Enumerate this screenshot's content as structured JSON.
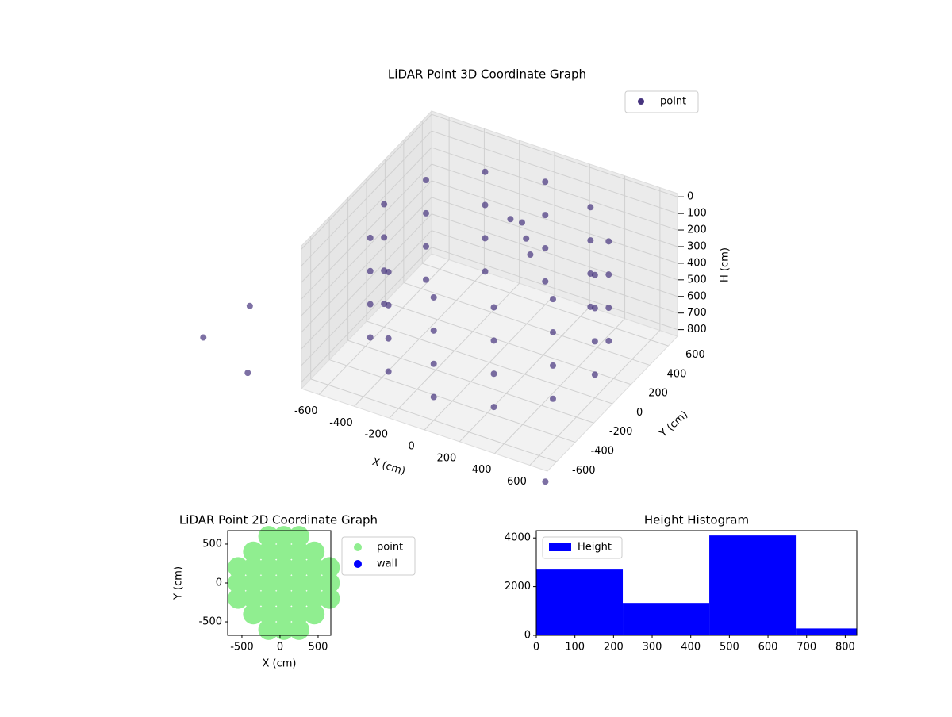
{
  "chart_data": [
    {
      "type": "scatter3d",
      "title": "LiDAR Point 3D Coordinate Graph",
      "xlabel": "X (cm)",
      "ylabel": "Y (cm)",
      "zlabel": "H (cm)",
      "xlim": [
        -700,
        700
      ],
      "ylim": [
        -700,
        700
      ],
      "zlim": [
        840,
        -20
      ],
      "xticks": [
        -600,
        -400,
        -200,
        0,
        200,
        400,
        600
      ],
      "yticks": [
        -600,
        -400,
        -200,
        0,
        200,
        400,
        600
      ],
      "zticks": [
        0,
        100,
        200,
        300,
        400,
        500,
        600,
        700,
        800
      ],
      "legend": "upper right",
      "series": [
        {
          "name": "point",
          "color": "#46337e",
          "x": [
            0,
            -300,
            -520,
            -600,
            -520,
            -300,
            0,
            300,
            520,
            600,
            520,
            300,
            0,
            -300,
            -520,
            -600,
            -520,
            -300,
            0,
            300,
            520,
            600,
            520,
            300,
            0,
            -300,
            -520,
            -600,
            -520,
            -300,
            0,
            300,
            520,
            600,
            520,
            300,
            0,
            -300,
            -520,
            -600,
            -520,
            -300,
            0,
            300,
            520,
            600,
            520,
            300,
            0,
            50,
            -50,
            100,
            -1100,
            -900,
            -1100,
            900
          ],
          "y": [
            600,
            520,
            300,
            0,
            -300,
            -520,
            -600,
            -520,
            -300,
            0,
            300,
            520,
            600,
            520,
            300,
            0,
            -300,
            -520,
            -600,
            -520,
            -300,
            0,
            300,
            520,
            600,
            520,
            300,
            0,
            -300,
            -520,
            -600,
            -520,
            -300,
            0,
            300,
            520,
            600,
            520,
            300,
            0,
            -300,
            -520,
            -600,
            -520,
            -300,
            0,
            300,
            520,
            350,
            300,
            320,
            250,
            -500,
            -900,
            -1000,
            -1100
          ],
          "z": [
            100,
            100,
            100,
            100,
            100,
            100,
            100,
            100,
            100,
            100,
            100,
            100,
            300,
            300,
            300,
            300,
            300,
            300,
            300,
            300,
            300,
            300,
            300,
            300,
            500,
            500,
            500,
            500,
            500,
            500,
            500,
            500,
            500,
            500,
            500,
            500,
            700,
            700,
            700,
            700,
            700,
            700,
            700,
            700,
            700,
            700,
            700,
            700,
            200,
            250,
            180,
            300,
            600,
            700,
            500,
            600
          ]
        }
      ]
    },
    {
      "type": "scatter",
      "title": "LiDAR Point 2D Coordinate Graph",
      "xlabel": "X (cm)",
      "ylabel": "Y (cm)",
      "xlim": [
        -687,
        667
      ],
      "ylim": [
        -673,
        673
      ],
      "xticks": [
        -500,
        0,
        500
      ],
      "yticks": [
        -500,
        0,
        500
      ],
      "legend": "outside right",
      "series": [
        {
          "name": "point",
          "color": "#90ee90",
          "x": [
            -550,
            -550,
            -550,
            -350,
            -350,
            -350,
            -350,
            -350,
            -150,
            -150,
            -150,
            -150,
            -150,
            -150,
            -150,
            50,
            50,
            50,
            50,
            50,
            50,
            50,
            250,
            250,
            250,
            250,
            250,
            250,
            250,
            450,
            450,
            450,
            450,
            450,
            650,
            650,
            650
          ],
          "y": [
            -200,
            0,
            200,
            -400,
            -200,
            0,
            200,
            400,
            -600,
            -400,
            -200,
            0,
            200,
            400,
            600,
            -600,
            -400,
            -200,
            0,
            200,
            400,
            600,
            -600,
            -400,
            -200,
            0,
            200,
            400,
            600,
            -400,
            -200,
            0,
            200,
            400,
            -200,
            0,
            200
          ]
        },
        {
          "name": "wall",
          "color": "#0000ff",
          "x": [],
          "y": []
        }
      ]
    },
    {
      "type": "histogram",
      "title": "Height Histogram",
      "xlim": [
        0,
        830
      ],
      "ylim": [
        0,
        4300
      ],
      "xticks": [
        0,
        100,
        200,
        300,
        400,
        500,
        600,
        700,
        800
      ],
      "yticks": [
        0,
        2000,
        4000
      ],
      "legend": "upper left",
      "bins": [
        0,
        224,
        448,
        672,
        896
      ],
      "series": [
        {
          "name": "Height",
          "color": "#0000ff",
          "values": [
            2700,
            1330,
            4100,
            280
          ]
        }
      ]
    }
  ]
}
